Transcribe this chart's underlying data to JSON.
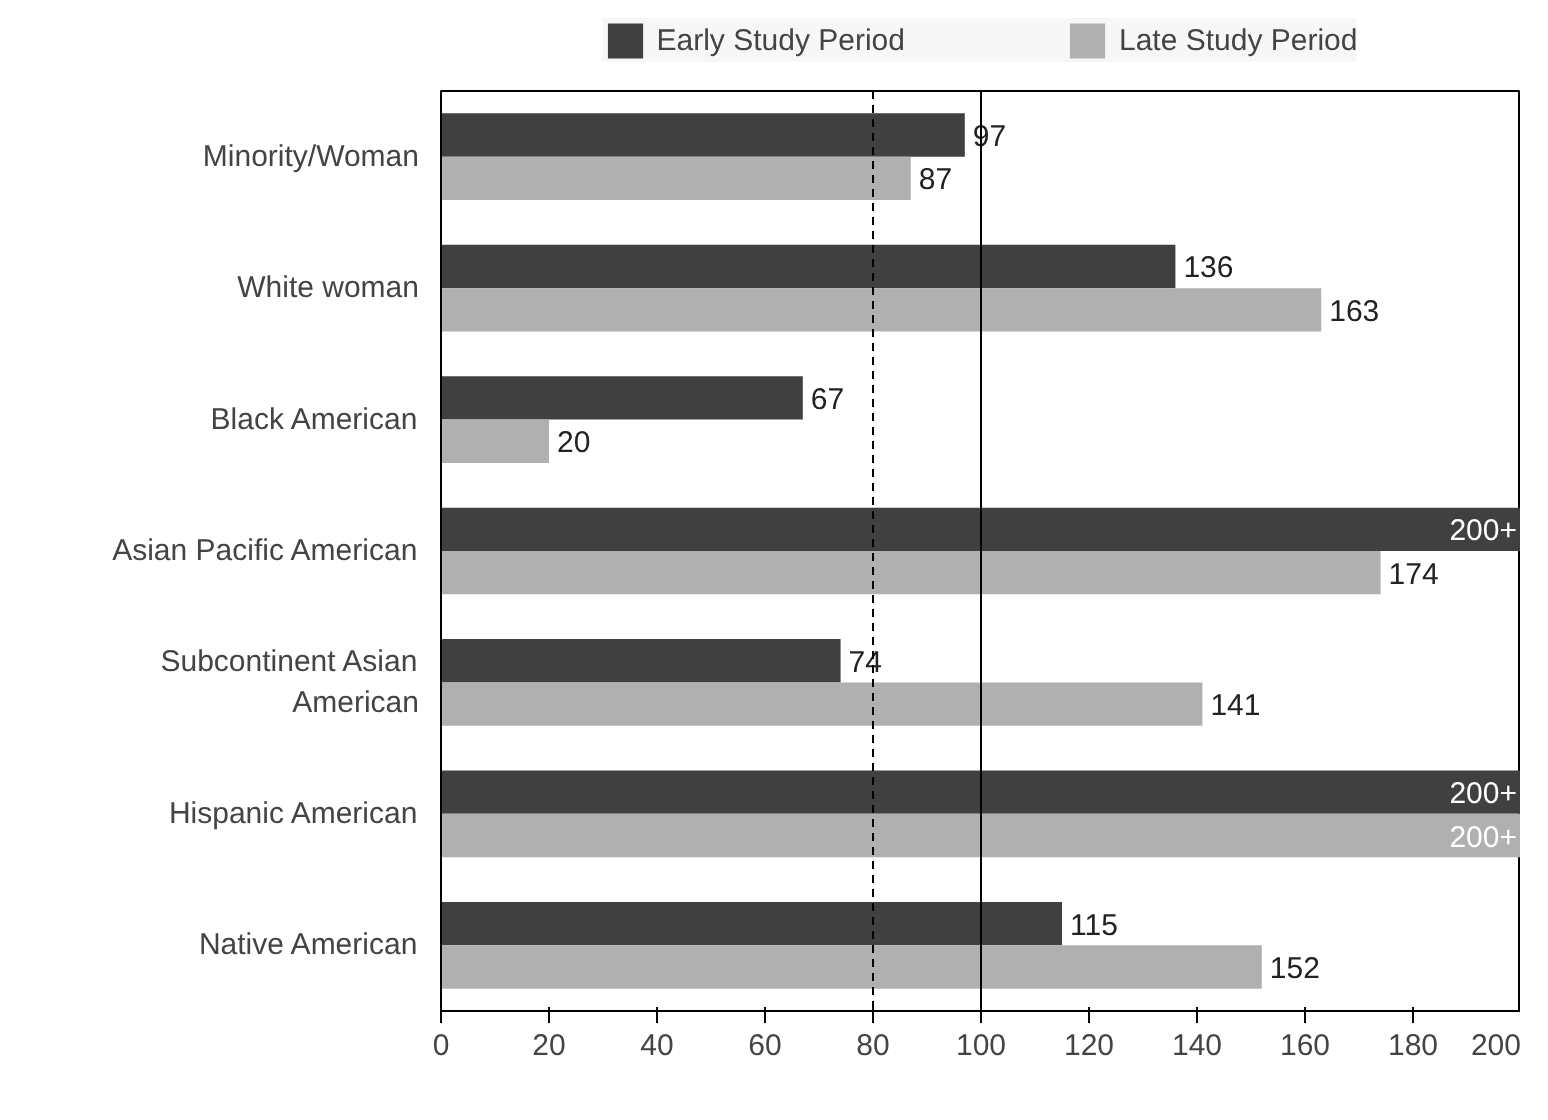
{
  "chart_data": {
    "type": "bar",
    "orientation": "horizontal",
    "categories": [
      "Minority/Woman",
      "White woman",
      "Black American",
      "Asian Pacific American",
      "Subcontinent Asian American",
      "Hispanic American",
      "Native American"
    ],
    "series": [
      {
        "name": "Early Study Period",
        "color": "#404040",
        "values": [
          97,
          136,
          67,
          200,
          74,
          200,
          115
        ],
        "value_labels": [
          "97",
          "136",
          "67",
          "200+",
          "74",
          "200+",
          "115"
        ]
      },
      {
        "name": "Late Study Period",
        "color": "#b0b0b0",
        "values": [
          87,
          163,
          20,
          174,
          141,
          200,
          152
        ],
        "value_labels": [
          "87",
          "163",
          "20",
          "174",
          "141",
          "200+",
          "152"
        ]
      }
    ],
    "xlim": [
      0,
      200
    ],
    "xticks": [
      0,
      20,
      40,
      60,
      80,
      100,
      120,
      140,
      160,
      180,
      200
    ],
    "ref_lines": [
      {
        "axis": "x",
        "value": 80,
        "line_style": "dashed",
        "color": "#000000"
      },
      {
        "axis": "x",
        "value": 100,
        "line_style": "solid",
        "color": "#000000"
      }
    ],
    "legend": "top",
    "grid": false
  }
}
